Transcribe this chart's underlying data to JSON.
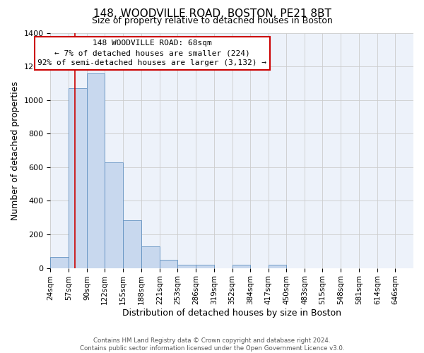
{
  "title": "148, WOODVILLE ROAD, BOSTON, PE21 8BT",
  "subtitle": "Size of property relative to detached houses in Boston",
  "xlabel": "Distribution of detached houses by size in Boston",
  "ylabel": "Number of detached properties",
  "bar_color": "#c8d8ee",
  "bar_edge_color": "#6090c0",
  "grid_color": "#cccccc",
  "background_color": "#edf2fa",
  "annotation_box_color": "#cc0000",
  "annotation_line1": "148 WOODVILLE ROAD: 68sqm",
  "annotation_line2": "← 7% of detached houses are smaller (224)",
  "annotation_line3": "92% of semi-detached houses are larger (3,132) →",
  "red_line_x": 68,
  "bin_edges": [
    24,
    57,
    90,
    122,
    155,
    188,
    221,
    253,
    286,
    319,
    352,
    384,
    417,
    450,
    483,
    515,
    548,
    581,
    614,
    646,
    679
  ],
  "bin_heights": [
    65,
    1070,
    1160,
    630,
    285,
    130,
    48,
    20,
    20,
    0,
    20,
    0,
    20,
    0,
    0,
    0,
    0,
    0,
    0,
    0
  ],
  "ylim": [
    0,
    1400
  ],
  "yticks": [
    0,
    200,
    400,
    600,
    800,
    1000,
    1200,
    1400
  ],
  "footer_text": "Contains HM Land Registry data © Crown copyright and database right 2024.\nContains public sector information licensed under the Open Government Licence v3.0.",
  "figsize": [
    6.0,
    5.0
  ],
  "dpi": 100
}
